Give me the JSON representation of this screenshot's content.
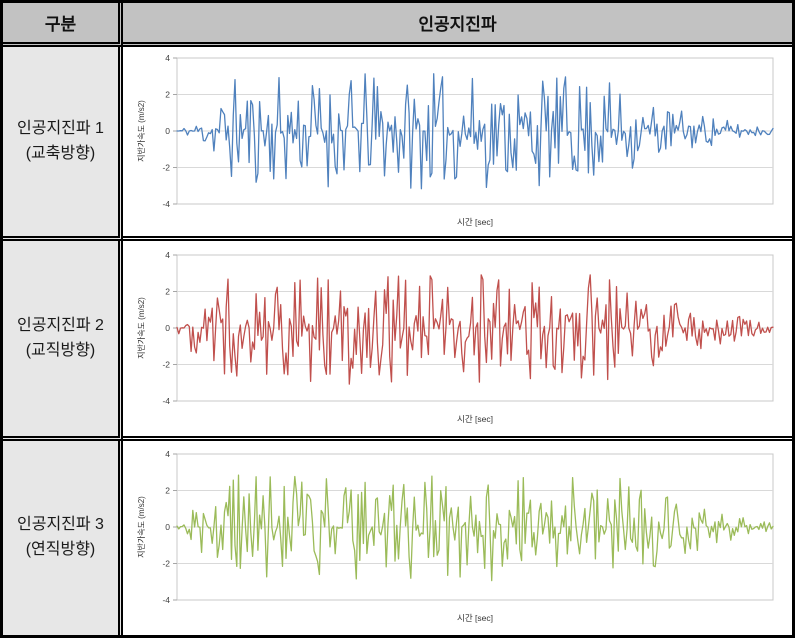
{
  "table": {
    "header": {
      "category": "구분",
      "title": "인공지진파"
    },
    "rows": [
      {
        "title": "인공지진파 1",
        "direction": "(교축방향)"
      },
      {
        "title": "인공지진파 2",
        "direction": "(교직방향)"
      },
      {
        "title": "인공지진파 3",
        "direction": "(연직방향)"
      }
    ]
  },
  "colors": {
    "table_border": "#000000",
    "header_bg": "#c2c2c2",
    "label_bg": "#e7e7e7",
    "plot_border": "#c8c8c8",
    "gridline": "#d9d9d9",
    "tick_text": "#3f3f3f"
  },
  "chart_data": [
    {
      "type": "line",
      "name": "인공지진파 1 (교축방향)",
      "xlabel": "시간 [sec]",
      "ylabel": "지반가속도 (m/s2)",
      "ylim": [
        -4,
        4
      ],
      "yticks": [
        4,
        2,
        0,
        -2,
        -4
      ],
      "grid": true,
      "legend": false,
      "color": "#4F81BD",
      "peak": 3.2,
      "n_points": 340,
      "seed": 11,
      "envelope": [
        [
          0,
          0.05
        ],
        [
          0.03,
          0.12
        ],
        [
          0.09,
          0.95
        ],
        [
          0.35,
          1.0
        ],
        [
          0.7,
          0.95
        ],
        [
          0.82,
          0.45
        ],
        [
          0.93,
          0.18
        ],
        [
          1,
          0.06
        ]
      ]
    },
    {
      "type": "line",
      "name": "인공지진파 2 (교직방향)",
      "xlabel": "시간 [sec]",
      "ylabel": "지반가속도 (m/s2)",
      "ylim": [
        -4,
        4
      ],
      "yticks": [
        4,
        2,
        0,
        -2,
        -4
      ],
      "grid": true,
      "legend": false,
      "color": "#C0504D",
      "peak": 3.1,
      "n_points": 340,
      "seed": 47,
      "envelope": [
        [
          0,
          0.1
        ],
        [
          0.05,
          0.85
        ],
        [
          0.3,
          1.0
        ],
        [
          0.75,
          0.95
        ],
        [
          0.87,
          0.4
        ],
        [
          1,
          0.07
        ]
      ]
    },
    {
      "type": "line",
      "name": "인공지진파 3 (연직방향)",
      "xlabel": "시간 [sec]",
      "ylabel": "지반가속도 (m/s2)",
      "ylim": [
        -4,
        4
      ],
      "yticks": [
        4,
        2,
        0,
        -2,
        -4
      ],
      "grid": true,
      "legend": false,
      "color": "#9BBB59",
      "peak": 3.0,
      "n_points": 340,
      "seed": 83,
      "envelope": [
        [
          0,
          0.08
        ],
        [
          0.04,
          0.6
        ],
        [
          0.1,
          0.95
        ],
        [
          0.5,
          1.0
        ],
        [
          0.78,
          0.9
        ],
        [
          0.9,
          0.35
        ],
        [
          1,
          0.06
        ]
      ]
    }
  ]
}
